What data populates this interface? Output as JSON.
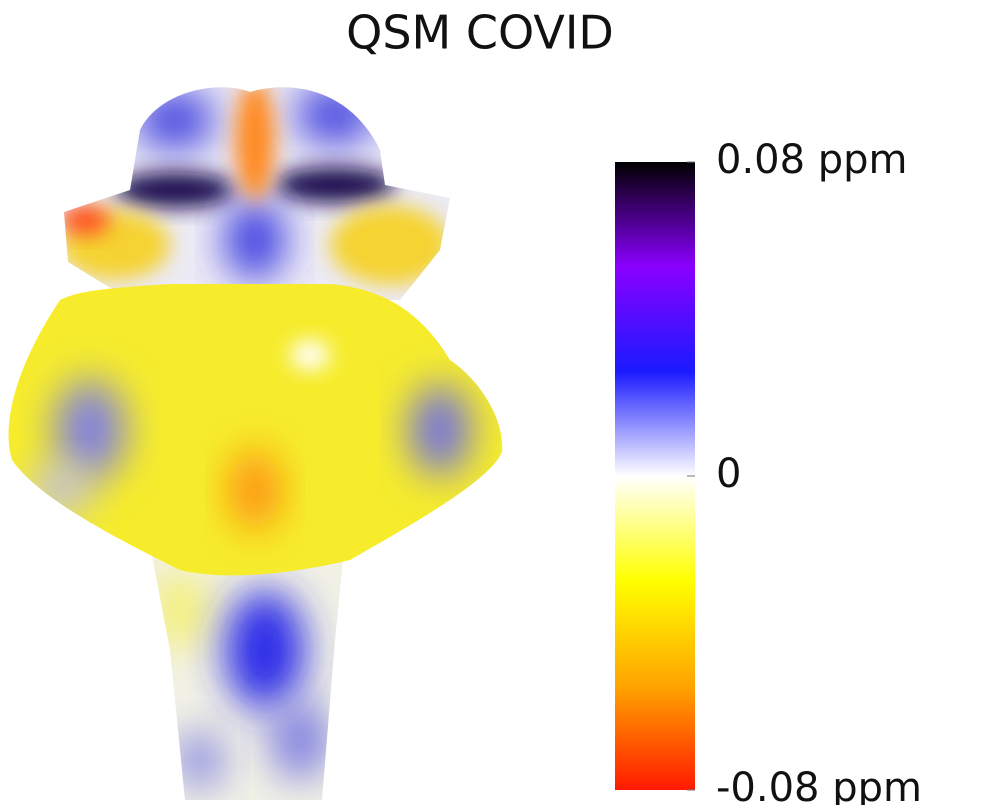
{
  "chart_data": {
    "type": "colorbar",
    "title": "QSM COVID",
    "ylim": [
      -0.08,
      0.08
    ],
    "yticks": [
      {
        "value": 0.08,
        "label": "0.08 ppm"
      },
      0,
      {
        "value": -0.08,
        "label": "-0.08 ppm"
      }
    ],
    "colormap": [
      "#ff1a00",
      "#ffa500",
      "#ffff00",
      "#ffffff",
      "#1a1aff",
      "#8a00ff",
      "#000000"
    ]
  }
}
